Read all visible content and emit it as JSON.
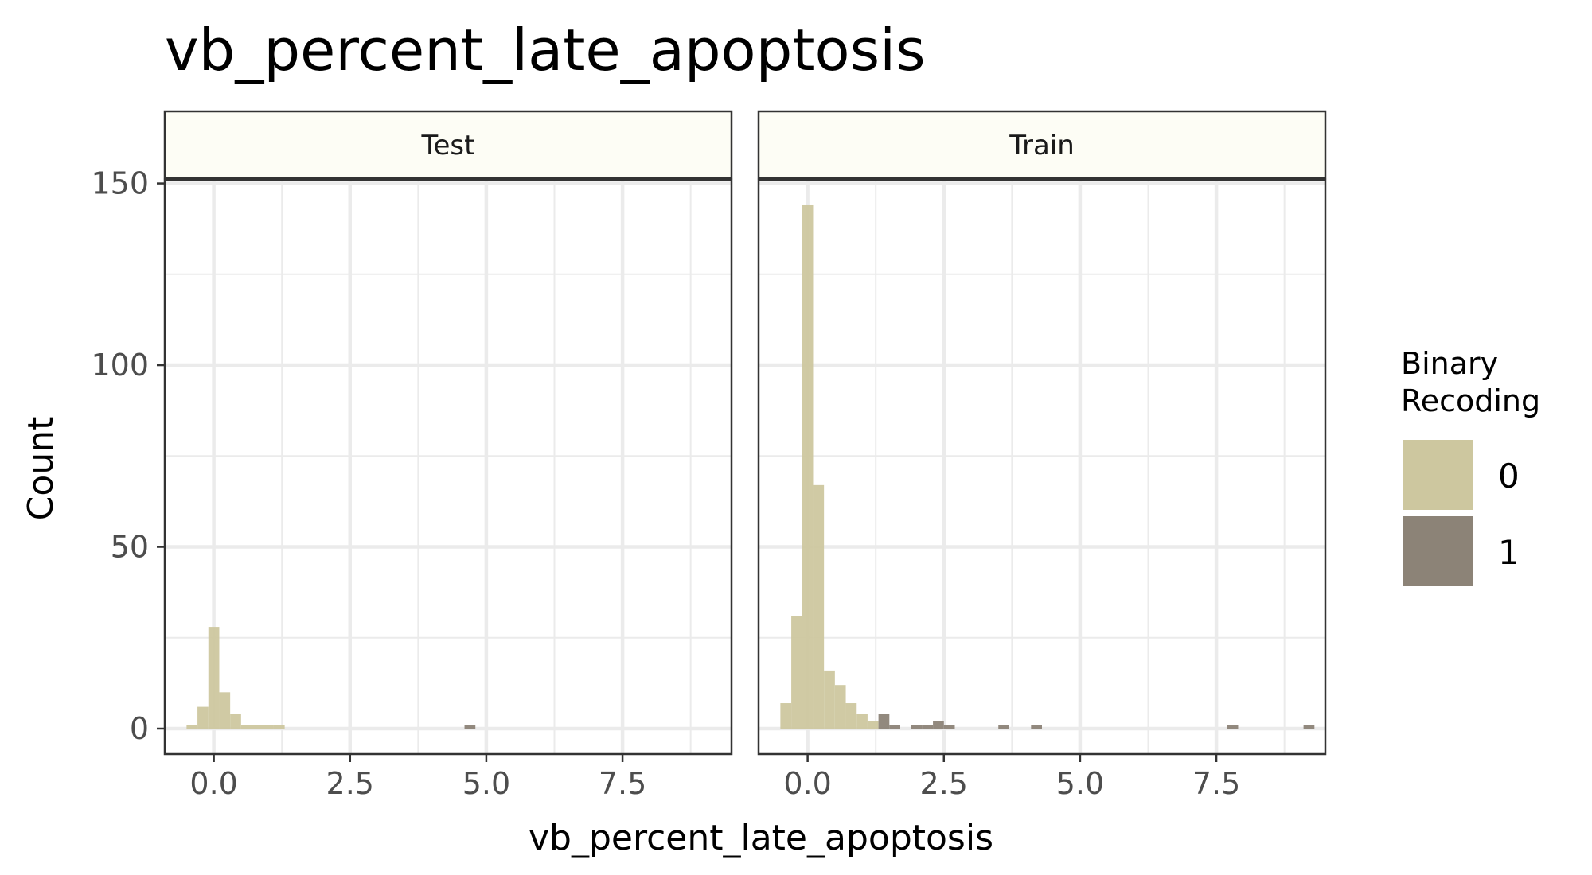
{
  "chart_data": {
    "type": "bar",
    "subtype": "faceted-histogram",
    "title": "vb_percent_late_apoptosis",
    "xlabel": "vb_percent_late_apoptosis",
    "ylabel": "Count",
    "xlim": [
      -0.9,
      9.5
    ],
    "ylim": [
      -7,
      151
    ],
    "x_ticks": [
      0,
      2.5,
      5,
      7.5
    ],
    "x_tick_labels": [
      "0.0",
      "2.5",
      "5.0",
      "7.5"
    ],
    "y_ticks": [
      0,
      50,
      100,
      150
    ],
    "y_tick_labels": [
      "0",
      "50",
      "100",
      "150"
    ],
    "bin_width": 0.2,
    "grid": true,
    "legend": {
      "title_lines": [
        "Binary",
        "Recoding"
      ],
      "placement": "right",
      "entries": [
        {
          "label": "0",
          "color": "#cdc79f"
        },
        {
          "label": "1",
          "color": "#8c8377"
        }
      ]
    },
    "colors": {
      "0": "#cdc79f",
      "1": "#8c8377",
      "strip_fill": "#fdfdf5",
      "grid": "#ebebeb",
      "panel_border": "#333333"
    },
    "panels": [
      {
        "name": "Test",
        "bins": [
          {
            "x": -0.4,
            "count": 1,
            "group": "0"
          },
          {
            "x": -0.2,
            "count": 6,
            "group": "0"
          },
          {
            "x": 0.0,
            "count": 28,
            "group": "0"
          },
          {
            "x": 0.2,
            "count": 10,
            "group": "0"
          },
          {
            "x": 0.4,
            "count": 4,
            "group": "0"
          },
          {
            "x": 0.6,
            "count": 1,
            "group": "0"
          },
          {
            "x": 0.8,
            "count": 1,
            "group": "0"
          },
          {
            "x": 1.0,
            "count": 1,
            "group": "0"
          },
          {
            "x": 1.2,
            "count": 1,
            "group": "0"
          },
          {
            "x": 4.7,
            "count": 1,
            "group": "1"
          }
        ]
      },
      {
        "name": "Train",
        "bins": [
          {
            "x": -0.4,
            "count": 7,
            "group": "0"
          },
          {
            "x": -0.2,
            "count": 31,
            "group": "0"
          },
          {
            "x": 0.0,
            "count": 144,
            "group": "0"
          },
          {
            "x": 0.2,
            "count": 67,
            "group": "0"
          },
          {
            "x": 0.4,
            "count": 16,
            "group": "0"
          },
          {
            "x": 0.6,
            "count": 12,
            "group": "0"
          },
          {
            "x": 0.8,
            "count": 7,
            "group": "0"
          },
          {
            "x": 1.0,
            "count": 4,
            "group": "0"
          },
          {
            "x": 1.2,
            "count": 2,
            "group": "0"
          },
          {
            "x": 1.4,
            "count": 4,
            "group": "1"
          },
          {
            "x": 1.6,
            "count": 1,
            "group": "1"
          },
          {
            "x": 2.0,
            "count": 1,
            "group": "1"
          },
          {
            "x": 2.2,
            "count": 1,
            "group": "1"
          },
          {
            "x": 2.4,
            "count": 2,
            "group": "1"
          },
          {
            "x": 2.6,
            "count": 1,
            "group": "1"
          },
          {
            "x": 3.6,
            "count": 1,
            "group": "1"
          },
          {
            "x": 4.2,
            "count": 1,
            "group": "1"
          },
          {
            "x": 7.8,
            "count": 1,
            "group": "1"
          },
          {
            "x": 9.2,
            "count": 1,
            "group": "1"
          }
        ]
      }
    ]
  }
}
